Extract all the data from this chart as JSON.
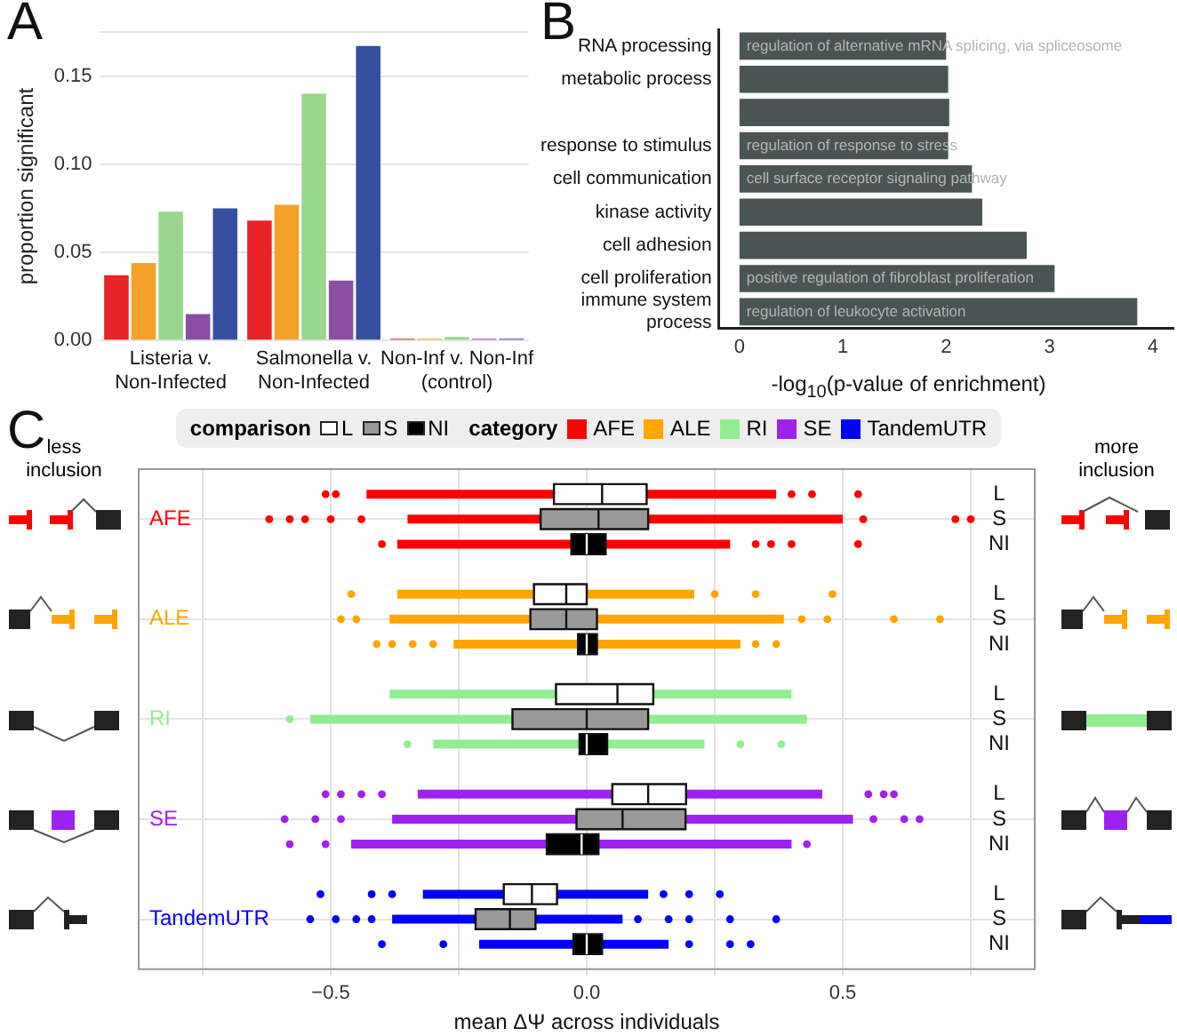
{
  "chart_data": [
    {
      "type": "bar",
      "title": "A",
      "ylabel": "proportion significant",
      "categories": [
        "Listeria v.\nNon-Infected",
        "Salmonella v.\nNon-Infected",
        "Non-Inf v. Non-Inf\n(control)"
      ],
      "series": [
        {
          "color": "#e8242a",
          "values": [
            0.037,
            0.068,
            0.001
          ]
        },
        {
          "color": "#f4a227",
          "values": [
            0.044,
            0.077,
            0.001
          ]
        },
        {
          "color": "#98d68c",
          "values": [
            0.073,
            0.14,
            0.002
          ]
        },
        {
          "color": "#8a4fa3",
          "values": [
            0.015,
            0.034,
            0.001
          ]
        },
        {
          "color": "#34509f",
          "values": [
            0.075,
            0.167,
            0.001
          ]
        }
      ],
      "ylim": [
        0,
        0.175
      ],
      "yticks": [
        {
          "value": 0,
          "label": "0.00"
        },
        {
          "value": 0.05,
          "label": "0.05"
        },
        {
          "value": 0.1,
          "label": "0.10"
        },
        {
          "value": 0.15,
          "label": "0.15"
        },
        {
          "value": 0.175,
          "label": null
        }
      ],
      "grid": "y"
    },
    {
      "type": "bar",
      "title": "B",
      "orientation": "horizontal",
      "xlabel": "-log$_{10}$(p-value of enrichment)",
      "categories": [
        "RNA processing",
        "metabolic process",
        null,
        "response to stimulus",
        "cell communication",
        "kinase activity",
        "cell adhesion",
        "cell proliferation",
        "immune system\nprocess"
      ],
      "values": [
        2.0,
        2.02,
        2.03,
        2.02,
        2.25,
        2.35,
        2.78,
        3.05,
        3.85
      ],
      "color": "#4a5553",
      "xlim": [
        -0.2,
        4.2
      ],
      "xticks": [
        0,
        1,
        2,
        3,
        4
      ],
      "annotations": [
        {
          "text": "regulation of alternative mRNA splicing, via spliceosome",
          "y": "RNA processing"
        },
        {
          "text": "regulation of response to stress",
          "y": "response to stimulus"
        },
        {
          "text": "cell surface receptor signaling pathway",
          "y": "cell communication"
        },
        {
          "text": "positive regulation of fibroblast proliferation",
          "y": "cell proliferation"
        },
        {
          "text": "regulation of leukocyte activation",
          "y": "immune system\nprocess"
        }
      ]
    },
    {
      "type": "box",
      "title": "C",
      "orientation": "horizontal",
      "xlabel": "mean ΔΨ across individuals",
      "legend_title": "comparison",
      "legend": "top",
      "categories": [
        "AFE",
        "ALE",
        "RI",
        "SE",
        "TandemUTR"
      ],
      "colors": [
        "#ff0000",
        "#ffa500",
        "#90ee90",
        "#a020f0",
        "#0000ff"
      ],
      "series": [
        {
          "name": "L",
          "color": "#ffffff",
          "boxes": [
            {
              "low": -0.43,
              "q1": -0.064,
              "median": 0.03,
              "q3": 0.117,
              "high": 0.37,
              "outliers": [
                -0.51,
                -0.49,
                0.4,
                0.44,
                0.53
              ]
            },
            {
              "low": -0.37,
              "q1": -0.103,
              "median": -0.04,
              "q3": 0.0,
              "high": 0.21,
              "outliers": [
                -0.46,
                0.25,
                0.33,
                0.48
              ]
            },
            {
              "low": -0.385,
              "q1": -0.06,
              "median": 0.06,
              "q3": 0.13,
              "high": 0.4
            },
            {
              "low": -0.33,
              "q1": 0.05,
              "median": 0.12,
              "q3": 0.194,
              "high": 0.46,
              "outliers": [
                -0.51,
                -0.48,
                -0.44,
                -0.4,
                0.55,
                0.58,
                0.6
              ]
            },
            {
              "low": -0.32,
              "q1": -0.162,
              "median": -0.107,
              "q3": -0.058,
              "high": 0.12,
              "outliers": [
                -0.52,
                -0.42,
                -0.38,
                0.15,
                0.2,
                0.26
              ]
            }
          ]
        },
        {
          "name": "S",
          "color": "#999999",
          "boxes": [
            {
              "low": -0.35,
              "q1": -0.09,
              "median": 0.023,
              "q3": 0.12,
              "high": 0.5,
              "outliers": [
                -0.62,
                -0.58,
                -0.55,
                -0.5,
                -0.44,
                0.54,
                0.72,
                0.75
              ]
            },
            {
              "low": -0.385,
              "q1": -0.11,
              "median": -0.04,
              "q3": 0.02,
              "high": 0.385,
              "outliers": [
                -0.48,
                -0.45,
                0.42,
                0.47,
                0.6,
                0.69
              ]
            },
            {
              "low": -0.54,
              "q1": -0.145,
              "median": 0.0,
              "q3": 0.12,
              "high": 0.43,
              "outliers": [
                -0.58
              ]
            },
            {
              "low": -0.38,
              "q1": -0.02,
              "median": 0.07,
              "q3": 0.193,
              "high": 0.52,
              "outliers": [
                -0.59,
                -0.53,
                -0.48,
                0.56,
                0.62,
                0.65
              ]
            },
            {
              "low": -0.38,
              "q1": -0.217,
              "median": -0.15,
              "q3": -0.1,
              "high": 0.07,
              "outliers": [
                -0.54,
                -0.49,
                -0.45,
                -0.42,
                0.1,
                0.16,
                0.2,
                0.28,
                0.37
              ]
            }
          ]
        },
        {
          "name": "NI",
          "color": "#000000",
          "boxes": [
            {
              "low": -0.37,
              "q1": -0.03,
              "median": 0.0,
              "q3": 0.037,
              "high": 0.28,
              "outliers": [
                -0.4,
                0.33,
                0.36,
                0.4,
                0.53
              ]
            },
            {
              "low": -0.26,
              "q1": -0.017,
              "median": 0.0,
              "q3": 0.02,
              "high": 0.3,
              "outliers": [
                -0.41,
                -0.38,
                -0.34,
                -0.3,
                0.33,
                0.37
              ]
            },
            {
              "low": -0.3,
              "q1": -0.014,
              "median": 0.0,
              "q3": 0.04,
              "high": 0.23,
              "outliers": [
                -0.35,
                0.3,
                0.38
              ]
            },
            {
              "low": -0.46,
              "q1": -0.078,
              "median": -0.01,
              "q3": 0.023,
              "high": 0.4,
              "outliers": [
                -0.58,
                -0.51,
                0.43
              ]
            },
            {
              "low": -0.21,
              "q1": -0.026,
              "median": 0.0,
              "q3": 0.03,
              "high": 0.16,
              "outliers": [
                -0.4,
                -0.28,
                0.2,
                0.28,
                0.32
              ]
            }
          ]
        }
      ],
      "xlim": [
        -0.875,
        0.875
      ],
      "xticks": [
        {
          "value": -0.75,
          "label": null
        },
        {
          "value": -0.5,
          "label": "−0.5"
        },
        {
          "value": -0.25,
          "label": null
        },
        {
          "value": 0,
          "label": "0.0"
        },
        {
          "value": 0.25,
          "label": null
        },
        {
          "value": 0.5,
          "label": "0.5"
        },
        {
          "value": 0.75,
          "label": null
        }
      ],
      "grid": true,
      "annotations": [
        "less inclusion",
        "more inclusion",
        "category"
      ]
    }
  ]
}
